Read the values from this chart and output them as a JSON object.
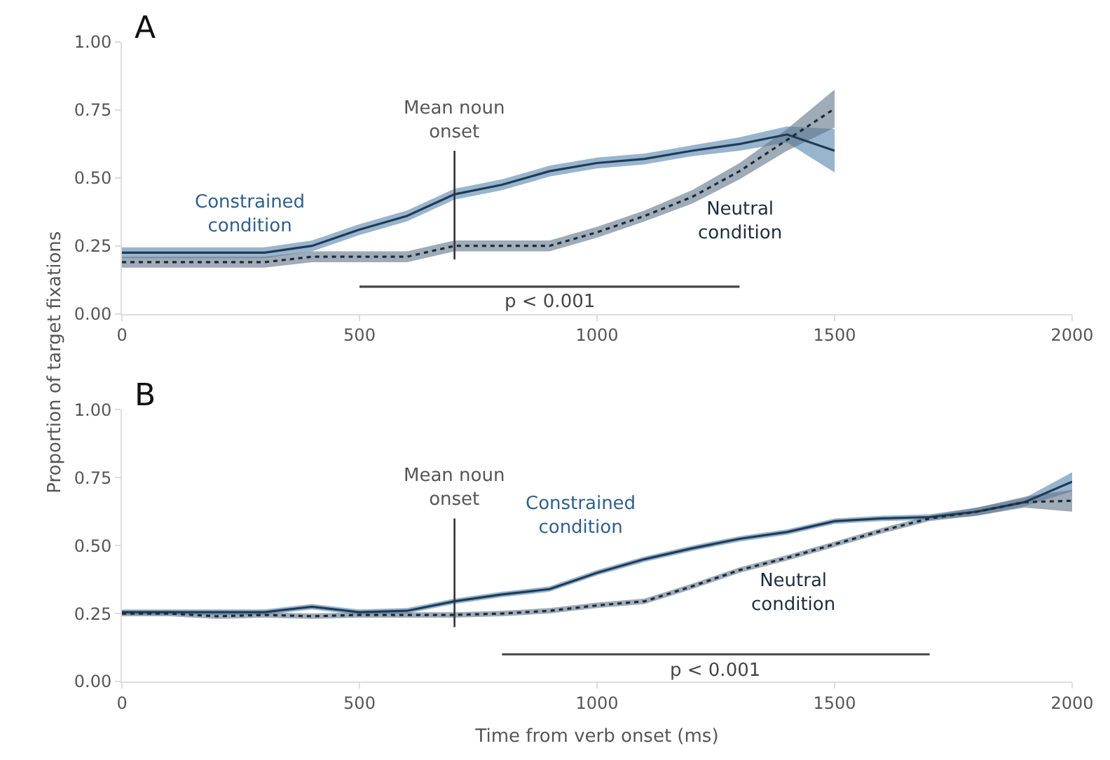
{
  "chart_data": [
    {
      "type": "line",
      "title": "A",
      "ylabel": "Proportion of target fixations",
      "x": [
        0,
        100,
        200,
        300,
        400,
        500,
        600,
        700,
        800,
        900,
        1000,
        1100,
        1200,
        1300,
        1400,
        1500
      ],
      "xlim": [
        0,
        2000
      ],
      "xticks": [
        0,
        500,
        1000,
        1500,
        2000
      ],
      "ylim": [
        0,
        1
      ],
      "yticks": [
        {
          "value": 0,
          "label": "0.00"
        },
        {
          "value": 0.25,
          "label": "0.25"
        },
        {
          "value": 0.5,
          "label": "0.50"
        },
        {
          "value": 0.75,
          "label": "0.75"
        },
        {
          "value": 1,
          "label": "1.00"
        }
      ],
      "grid": false,
      "legend": false,
      "marker": "none",
      "series": [
        {
          "name": "Constrained condition",
          "color": "#1f3b57",
          "line_style": "solid",
          "values": [
            0.225,
            0.225,
            0.225,
            0.225,
            0.25,
            0.31,
            0.36,
            0.44,
            0.475,
            0.525,
            0.555,
            0.57,
            0.6,
            0.625,
            0.66,
            0.6
          ],
          "lower": [
            0.205,
            0.205,
            0.205,
            0.205,
            0.23,
            0.29,
            0.34,
            0.42,
            0.455,
            0.505,
            0.535,
            0.55,
            0.58,
            0.6,
            0.63,
            0.52
          ],
          "upper": [
            0.245,
            0.245,
            0.245,
            0.245,
            0.27,
            0.33,
            0.38,
            0.46,
            0.495,
            0.545,
            0.575,
            0.59,
            0.62,
            0.65,
            0.69,
            0.68
          ]
        },
        {
          "name": "Neutral condition",
          "color": "#1c2b3c",
          "line_style": "dotted",
          "values": [
            0.19,
            0.19,
            0.19,
            0.19,
            0.21,
            0.21,
            0.21,
            0.25,
            0.25,
            0.25,
            0.3,
            0.36,
            0.43,
            0.525,
            0.64,
            0.755
          ],
          "lower": [
            0.17,
            0.17,
            0.17,
            0.17,
            0.19,
            0.19,
            0.19,
            0.23,
            0.23,
            0.23,
            0.28,
            0.34,
            0.405,
            0.495,
            0.6,
            0.685
          ],
          "upper": [
            0.21,
            0.21,
            0.21,
            0.21,
            0.23,
            0.23,
            0.23,
            0.27,
            0.27,
            0.27,
            0.32,
            0.38,
            0.455,
            0.555,
            0.68,
            0.825
          ]
        },
        {
          "type": "line",
          "color": "#444444",
          "line_style": "solid",
          "x": [
            500,
            1300
          ],
          "values": [
            0.1,
            0.1
          ]
        }
      ],
      "annotations": [
        {
          "text": "p < 0.001",
          "x": 900,
          "y": 0.1
        }
      ],
      "ref_lines": [
        {
          "axis": "x",
          "value": 700,
          "label": "Mean noun onset",
          "color": "#333333"
        }
      ]
    },
    {
      "type": "line",
      "title": "B",
      "xlabel": "Time from verb onset (ms)",
      "x": [
        0,
        100,
        200,
        300,
        400,
        500,
        600,
        700,
        800,
        900,
        1000,
        1100,
        1200,
        1300,
        1400,
        1500,
        1600,
        1700,
        1800,
        1900,
        2000
      ],
      "xlim": [
        0,
        2000
      ],
      "xticks": [
        0,
        500,
        1000,
        1500,
        2000
      ],
      "ylim": [
        0,
        1
      ],
      "yticks": [
        {
          "value": 0,
          "label": "0.00"
        },
        {
          "value": 0.25,
          "label": "0.25"
        },
        {
          "value": 0.5,
          "label": "0.50"
        },
        {
          "value": 0.75,
          "label": "0.75"
        },
        {
          "value": 1,
          "label": "1.00"
        }
      ],
      "grid": false,
      "legend": false,
      "marker": "none",
      "series": [
        {
          "name": "Constrained condition",
          "color": "#1f3b57",
          "line_style": "solid",
          "values": [
            0.255,
            0.255,
            0.255,
            0.255,
            0.275,
            0.255,
            0.26,
            0.295,
            0.32,
            0.34,
            0.4,
            0.45,
            0.49,
            0.525,
            0.55,
            0.59,
            0.6,
            0.605,
            0.625,
            0.66,
            0.735
          ],
          "lower": [
            0.245,
            0.245,
            0.245,
            0.245,
            0.265,
            0.245,
            0.25,
            0.285,
            0.31,
            0.33,
            0.39,
            0.44,
            0.48,
            0.515,
            0.54,
            0.58,
            0.59,
            0.595,
            0.61,
            0.645,
            0.7
          ],
          "upper": [
            0.265,
            0.265,
            0.265,
            0.265,
            0.285,
            0.265,
            0.27,
            0.305,
            0.33,
            0.35,
            0.41,
            0.46,
            0.5,
            0.535,
            0.56,
            0.6,
            0.61,
            0.615,
            0.64,
            0.675,
            0.77
          ]
        },
        {
          "name": "Neutral condition",
          "color": "#1c2b3c",
          "line_style": "dotted",
          "values": [
            0.25,
            0.25,
            0.24,
            0.245,
            0.24,
            0.245,
            0.245,
            0.245,
            0.25,
            0.26,
            0.28,
            0.295,
            0.35,
            0.41,
            0.455,
            0.505,
            0.555,
            0.6,
            0.625,
            0.66,
            0.665
          ],
          "lower": [
            0.24,
            0.24,
            0.23,
            0.235,
            0.23,
            0.235,
            0.235,
            0.235,
            0.24,
            0.25,
            0.27,
            0.285,
            0.34,
            0.4,
            0.445,
            0.495,
            0.545,
            0.59,
            0.61,
            0.64,
            0.625
          ],
          "upper": [
            0.26,
            0.26,
            0.25,
            0.255,
            0.25,
            0.255,
            0.255,
            0.255,
            0.26,
            0.27,
            0.29,
            0.305,
            0.36,
            0.42,
            0.465,
            0.515,
            0.565,
            0.61,
            0.64,
            0.68,
            0.705
          ]
        },
        {
          "type": "line",
          "color": "#444444",
          "line_style": "solid",
          "x": [
            800,
            1700
          ],
          "values": [
            0.1,
            0.1
          ]
        }
      ],
      "annotations": [
        {
          "text": "p < 0.001",
          "x": 1250,
          "y": 0.1
        }
      ],
      "ref_lines": [
        {
          "axis": "x",
          "value": 700,
          "label": "Mean noun onset",
          "color": "#333333"
        }
      ]
    }
  ]
}
